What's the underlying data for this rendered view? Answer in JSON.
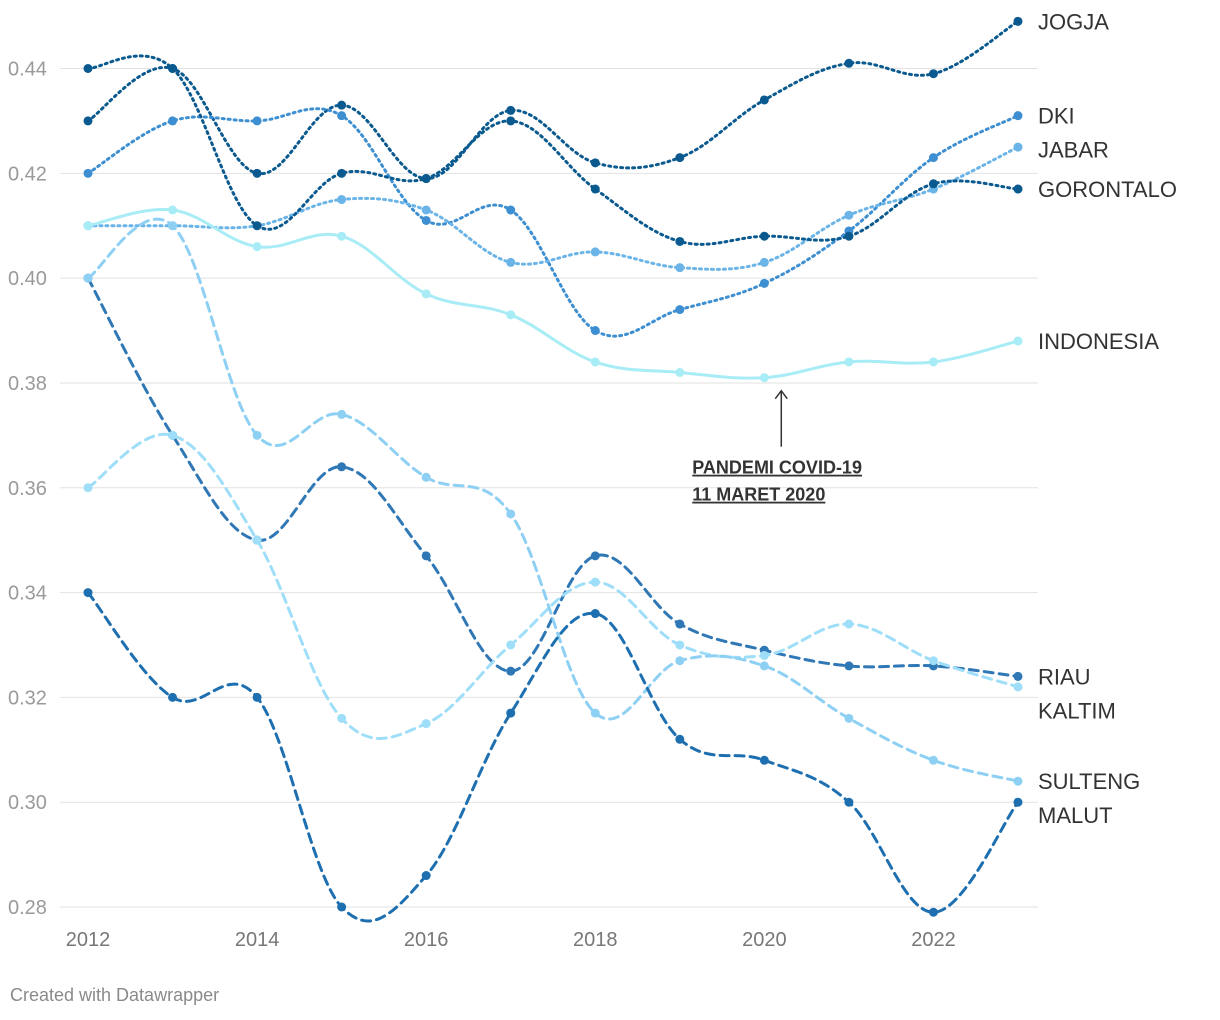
{
  "chart_data": {
    "type": "line",
    "x": [
      2012,
      2013,
      2014,
      2015,
      2016,
      2017,
      2018,
      2019,
      2020,
      2021,
      2022,
      2023
    ],
    "xticks": [
      "2012",
      "2014",
      "2016",
      "2018",
      "2020",
      "2022"
    ],
    "yticks": [
      "0.44",
      "0.42",
      "0.40",
      "0.38",
      "0.36",
      "0.34",
      "0.32",
      "0.30",
      "0.28"
    ],
    "ylim": [
      0.28,
      0.44
    ],
    "grid": true,
    "series": [
      {
        "name": "JOGJA",
        "color": "#0b5a8f",
        "dash": "dotted",
        "values": [
          0.43,
          0.44,
          0.42,
          0.433,
          0.419,
          0.432,
          0.422,
          0.423,
          0.434,
          0.441,
          0.439,
          0.449
        ]
      },
      {
        "name": "DKI",
        "color": "#3d8fd1",
        "dash": "dotted",
        "values": [
          0.42,
          0.43,
          0.43,
          0.431,
          0.411,
          0.413,
          0.39,
          0.394,
          0.399,
          0.409,
          0.423,
          0.431
        ]
      },
      {
        "name": "JABAR",
        "color": "#6ab4e8",
        "dash": "dotted",
        "values": [
          0.41,
          0.41,
          0.41,
          0.415,
          0.413,
          0.403,
          0.405,
          0.402,
          0.403,
          0.412,
          0.417,
          0.425
        ]
      },
      {
        "name": "GORONTALO",
        "color": "#0b5a8f",
        "dash": "dotted",
        "values": [
          0.44,
          0.44,
          0.41,
          0.42,
          0.419,
          0.43,
          0.417,
          0.407,
          0.408,
          0.408,
          0.418,
          0.417
        ]
      },
      {
        "name": "INDONESIA",
        "color": "#a8ecf6",
        "dash": "solid",
        "values": [
          0.41,
          0.413,
          0.406,
          0.408,
          0.397,
          0.393,
          0.384,
          0.382,
          0.381,
          0.384,
          0.384,
          0.388
        ]
      },
      {
        "name": "RIAU",
        "color": "#2f78b5",
        "dash": "dashed",
        "values": [
          0.4,
          0.37,
          0.35,
          0.364,
          0.347,
          0.325,
          0.347,
          0.334,
          0.329,
          0.326,
          0.326,
          0.324
        ]
      },
      {
        "name": "KALTIM",
        "color": "#9fdef8",
        "dash": "dashed",
        "values": [
          0.36,
          0.37,
          0.35,
          0.316,
          0.315,
          0.33,
          0.342,
          0.33,
          0.328,
          0.334,
          0.327,
          0.322
        ]
      },
      {
        "name": "SULTENG",
        "color": "#8ed0f4",
        "dash": "dashed",
        "values": [
          0.4,
          0.41,
          0.37,
          0.374,
          0.362,
          0.355,
          0.317,
          0.327,
          0.326,
          0.316,
          0.308,
          0.304
        ]
      },
      {
        "name": "MALUT",
        "color": "#1e6fb0",
        "dash": "dashed",
        "values": [
          0.34,
          0.32,
          0.32,
          0.28,
          0.286,
          0.317,
          0.336,
          0.312,
          0.308,
          0.3,
          0.279,
          0.3
        ]
      }
    ],
    "annotation": {
      "lines": [
        "PANDEMI COVID-19",
        "11 MARET 2020"
      ],
      "x": 2020.2,
      "y": 0.381
    }
  },
  "credit": "Created with Datawrapper"
}
